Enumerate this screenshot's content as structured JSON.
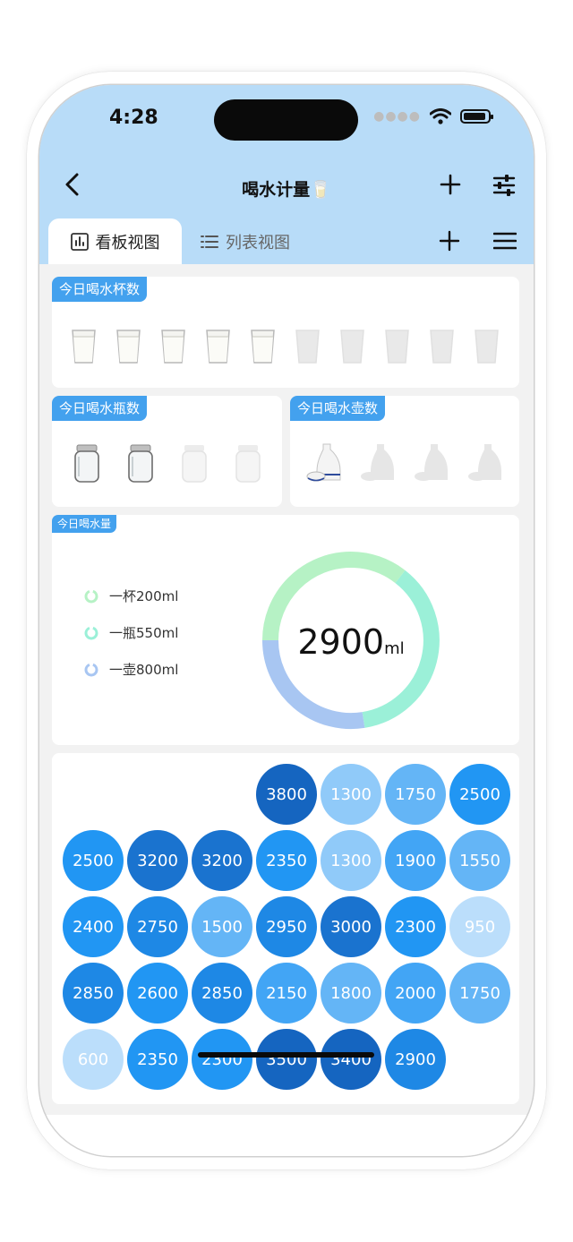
{
  "status_bar": {
    "time": "4:28"
  },
  "nav": {
    "title": "喝水计量🥛"
  },
  "tabs": [
    {
      "label": "看板视图",
      "active": true
    },
    {
      "label": "列表视图",
      "active": false
    }
  ],
  "cups_card": {
    "label": "今日喝水杯数",
    "total": 10,
    "filled": 5
  },
  "bottles_card": {
    "label": "今日喝水瓶数",
    "total": 4,
    "filled": 2
  },
  "pots_card": {
    "label": "今日喝水壶数",
    "total": 4,
    "filled": 1
  },
  "volume_card": {
    "label": "今日喝水量",
    "legend": [
      "一杯200ml",
      "一瓶550ml",
      "一壶800ml"
    ],
    "total_value": "2900",
    "total_unit": "ml",
    "colors": [
      "#b6f2c5",
      "#9bf0d8",
      "#a8c6f2"
    ]
  },
  "history": {
    "values": [
      3800,
      1300,
      1750,
      2500,
      2500,
      3200,
      3200,
      2350,
      1300,
      1900,
      1550,
      2400,
      2750,
      1500,
      2950,
      3000,
      2300,
      950,
      2850,
      2600,
      2850,
      2150,
      1800,
      2000,
      1750,
      600,
      2350,
      2300,
      3500,
      3400,
      2900
    ]
  }
}
